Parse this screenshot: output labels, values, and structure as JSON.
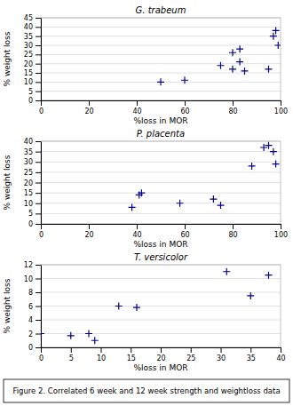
{
  "chart_data": [
    {
      "type": "scatter",
      "title": "G. trabeum",
      "xlabel": "%loss in MOR",
      "ylabel": "% weight loss",
      "xlim": [
        0,
        100
      ],
      "ylim": [
        0,
        45
      ],
      "xticks": [
        0,
        20,
        40,
        60,
        80,
        100
      ],
      "yticks": [
        0,
        5,
        10,
        15,
        20,
        25,
        30,
        35,
        40,
        45
      ],
      "x": [
        50,
        60,
        75,
        80,
        80,
        83,
        83,
        85,
        95,
        97,
        98,
        99
      ],
      "y": [
        10,
        11,
        19,
        17,
        26,
        28,
        21,
        16,
        17,
        35,
        38,
        30
      ],
      "color": "#00008B",
      "marker": "plus",
      "grid": "y"
    },
    {
      "type": "scatter",
      "title": "P. placenta",
      "xlabel": "%loss in MOR",
      "ylabel": "% weight loss",
      "xlim": [
        0,
        100
      ],
      "ylim": [
        0,
        40
      ],
      "xticks": [
        0,
        20,
        40,
        60,
        80,
        100
      ],
      "yticks": [
        0,
        5,
        10,
        15,
        20,
        25,
        30,
        35,
        40
      ],
      "x": [
        38,
        41,
        42,
        58,
        72,
        75,
        88,
        93,
        95,
        97,
        98
      ],
      "y": [
        8,
        14,
        15,
        10,
        12,
        9,
        28,
        37,
        38,
        35,
        29
      ],
      "color": "#00008B",
      "marker": "plus",
      "grid": "y"
    },
    {
      "type": "scatter",
      "title": "T. versicolor",
      "xlabel": "%loss in MOR",
      "ylabel": "% weight loss",
      "xlim": [
        0,
        40
      ],
      "ylim": [
        0,
        12
      ],
      "xticks": [
        0,
        5,
        10,
        15,
        20,
        25,
        30,
        35,
        40
      ],
      "yticks": [
        0,
        2,
        4,
        6,
        8,
        10,
        12
      ],
      "x": [
        0,
        5,
        8,
        9,
        13,
        16,
        31,
        35,
        38
      ],
      "y": [
        2,
        1.7,
        2,
        1,
        6,
        5.8,
        11,
        7.5,
        10.5
      ],
      "color": "#00008B",
      "marker": "plus",
      "grid": "y"
    }
  ],
  "caption": "Figure 2. Correlated 6 week and 12 week strength and weightloss data"
}
